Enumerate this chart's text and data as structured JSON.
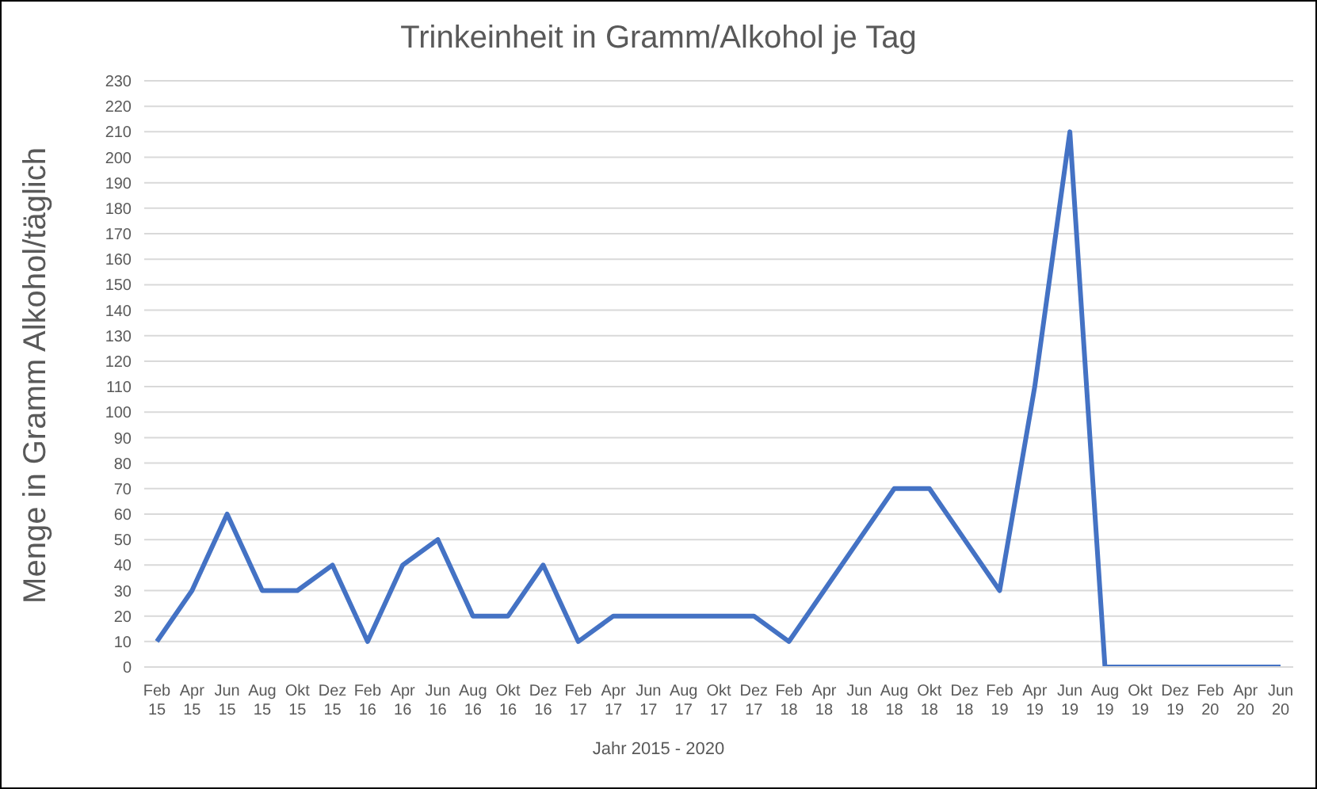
{
  "chart_data": {
    "type": "line",
    "title": "Trinkeinheit in Gramm/Alkohol je Tag",
    "xlabel": "Jahr 2015 - 2020",
    "ylabel": "Menge in Gramm Alkohol/täglich",
    "categories": [
      "Feb 15",
      "Apr 15",
      "Jun 15",
      "Aug 15",
      "Okt 15",
      "Dez 15",
      "Feb 16",
      "Apr 16",
      "Jun 16",
      "Aug 16",
      "Okt 16",
      "Dez 16",
      "Feb 17",
      "Apr 17",
      "Jun 17",
      "Aug 17",
      "Okt 17",
      "Dez 17",
      "Feb 18",
      "Apr 18",
      "Jun 18",
      "Aug 18",
      "Okt 18",
      "Dez 18",
      "Feb 19",
      "Apr 19",
      "Jun 19",
      "Aug 19",
      "Okt 19",
      "Dez 19",
      "Feb 20",
      "Apr 20",
      "Jun 20"
    ],
    "values": [
      10,
      30,
      60,
      30,
      30,
      40,
      10,
      40,
      50,
      20,
      20,
      40,
      10,
      20,
      20,
      20,
      20,
      20,
      10,
      30,
      50,
      70,
      70,
      50,
      30,
      110,
      210,
      0,
      0,
      0,
      0,
      0,
      0
    ],
    "color": "#4472c4",
    "ylim": [
      0,
      230
    ],
    "yticks": [
      0,
      10,
      20,
      30,
      40,
      50,
      60,
      70,
      80,
      90,
      100,
      110,
      120,
      130,
      140,
      150,
      160,
      170,
      180,
      190,
      200,
      210,
      220,
      230
    ],
    "grid": "y",
    "marker": "none",
    "line_style": "solid"
  }
}
